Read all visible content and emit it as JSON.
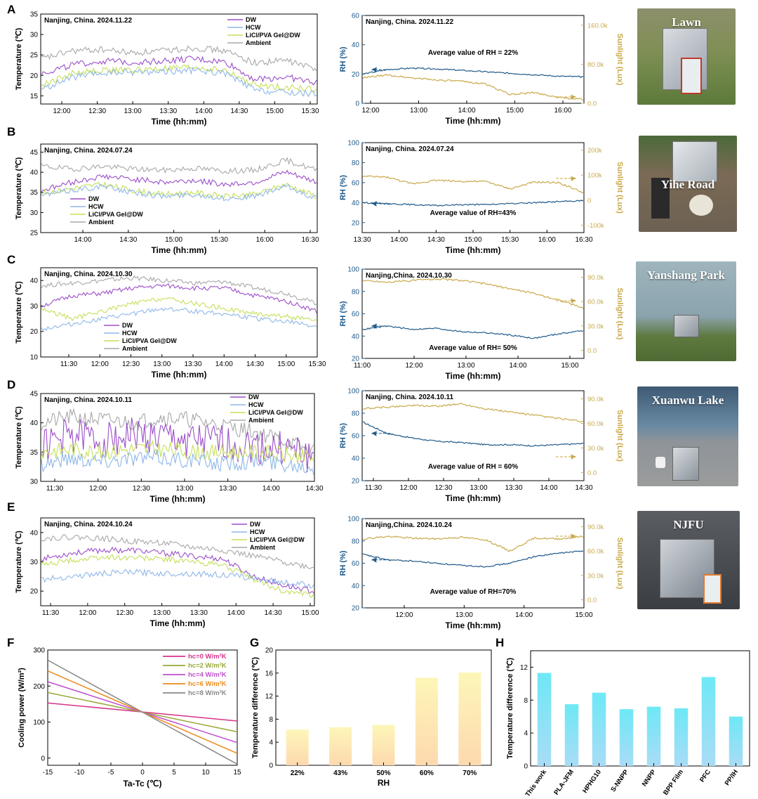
{
  "panel_labels": [
    "A",
    "B",
    "C",
    "D",
    "E",
    "F",
    "G",
    "H"
  ],
  "photos": [
    {
      "name": "lawn-photo",
      "label": "Lawn",
      "bg": "#6f8a4f"
    },
    {
      "name": "yihe-road-photo",
      "label": "Yihe Road",
      "bg": "#7a6a55"
    },
    {
      "name": "yanshang-park-photo",
      "label": "Yanshang Park",
      "bg": "#8aa0a8"
    },
    {
      "name": "xuanwu-lake-photo",
      "label": "Xuanwu Lake",
      "bg": "#5d7a8e"
    },
    {
      "name": "njfu-photo",
      "label": "NJFU",
      "bg": "#4a4e55"
    }
  ],
  "colors": {
    "DW": "#9b4fc9",
    "HCW": "#8fb7e8",
    "LiCl": "#c4e05a",
    "Ambient": "#a8a8a8",
    "RH": "#1f5a8a",
    "Sun": "#c9a94a"
  },
  "chart_data": [
    {
      "id": "A-temp",
      "type": "line",
      "title": "Nanjing, China.  2024.11.22",
      "xlabel": "Time (hh:mm)",
      "ylabel": "Temperature (℃)",
      "xticks": [
        "12:00",
        "12:30",
        "13:00",
        "13:30",
        "14:00",
        "14:30",
        "15:00",
        "15:30"
      ],
      "yticks": [
        15,
        20,
        25,
        30,
        35
      ],
      "ylim": [
        13,
        35
      ],
      "legend": [
        "DW",
        "HCW",
        "LiCl/PVA Gel@DW",
        "Ambient"
      ],
      "legend_position": "top-right",
      "series": [
        {
          "name": "DW",
          "values": [
            20.5,
            22.5,
            23.5,
            23.2,
            23.6,
            24.0,
            23.3,
            19.0,
            19.6,
            18.2
          ]
        },
        {
          "name": "HCW",
          "values": [
            16.5,
            19.5,
            20.5,
            20.8,
            21.0,
            21.2,
            20.5,
            16.3,
            15.8,
            15.5
          ]
        },
        {
          "name": "LiCl/PVA Gel@DW",
          "values": [
            17.5,
            20.5,
            21.2,
            21.3,
            21.6,
            22.0,
            21.2,
            17.5,
            17.2,
            16.5
          ]
        },
        {
          "name": "Ambient",
          "values": [
            24.0,
            26.0,
            26.3,
            25.5,
            26.0,
            26.8,
            26.0,
            23.0,
            23.7,
            21.5
          ]
        }
      ]
    },
    {
      "id": "A-rh",
      "type": "line",
      "title": "Nanjing, China.  2024.11.22",
      "annotation": "Average value of  RH = 22%",
      "xlabel": "Time (hh:mm)",
      "ylabel": "RH (%)",
      "y2label": "Sunlight (Lux)",
      "xticks": [
        "12:00",
        "13:00",
        "14:00",
        "15:00",
        "16:00"
      ],
      "yticks": [
        0,
        20,
        40,
        60
      ],
      "ylim": [
        0,
        60
      ],
      "y2ticks": [
        "0.0",
        "80.0k",
        "160.0k"
      ],
      "y2lim": [
        0,
        180000
      ],
      "series": [
        {
          "name": "RH",
          "values": [
            20,
            23,
            24,
            23.5,
            22.5,
            21.5,
            20.5,
            19.5,
            18.5,
            18
          ]
        },
        {
          "name": "Sunlight",
          "values": [
            52000,
            58000,
            52000,
            48000,
            45000,
            40000,
            18000,
            22000,
            12000,
            8000
          ]
        }
      ]
    },
    {
      "id": "B-temp",
      "type": "line",
      "title": "Nanjing, China.  2024.07.24",
      "xlabel": "Time (hh:mm)",
      "ylabel": "Temperature (℃)",
      "xticks": [
        "14:00",
        "14:30",
        "15:00",
        "15:30",
        "16:00",
        "16:30"
      ],
      "yticks": [
        25,
        30,
        35,
        40,
        45
      ],
      "ylim": [
        25,
        47
      ],
      "legend": [
        "DW",
        "HCW",
        "LiCl/PVA Gel@DW",
        "Ambient"
      ],
      "legend_position": "bottom-left",
      "series": [
        {
          "name": "DW",
          "values": [
            35.5,
            37.5,
            39.0,
            38.3,
            37.5,
            38.0,
            37.0,
            37.5,
            40.0,
            37.5
          ]
        },
        {
          "name": "HCW",
          "values": [
            34.3,
            35.5,
            36.5,
            35.0,
            34.0,
            34.5,
            33.5,
            34.0,
            36.5,
            33.5
          ]
        },
        {
          "name": "LiCl/PVA Gel@DW",
          "values": [
            34.8,
            36.0,
            37.0,
            35.5,
            34.5,
            35.0,
            34.0,
            34.5,
            37.0,
            34.0
          ]
        },
        {
          "name": "Ambient",
          "values": [
            41.5,
            40.8,
            41.5,
            40.8,
            40.5,
            41.0,
            40.3,
            40.5,
            43.0,
            40.5
          ]
        }
      ]
    },
    {
      "id": "B-rh",
      "type": "line",
      "title": "Nanjing, China.  2024.07.24",
      "annotation": "Average value of RH=43%",
      "xlabel": "Time (hh:mm)",
      "ylabel": "RH (%)",
      "y2label": "Sunlight (Lux)",
      "xticks": [
        "13:30",
        "14:00",
        "14:30",
        "15:00",
        "15:30",
        "16:00",
        "16:30"
      ],
      "yticks": [
        20,
        40,
        60,
        80,
        100
      ],
      "ylim": [
        10,
        100
      ],
      "y2ticks": [
        "-100k",
        "0",
        "100k",
        "200k"
      ],
      "y2lim": [
        -130000,
        230000
      ],
      "series": [
        {
          "name": "RH",
          "values": [
            40,
            39,
            38,
            37,
            38,
            38,
            39,
            40,
            41,
            42
          ]
        },
        {
          "name": "Sunlight",
          "values": [
            95000,
            92000,
            65000,
            80000,
            75000,
            75000,
            45000,
            72000,
            70000,
            30000
          ]
        }
      ]
    },
    {
      "id": "C-temp",
      "type": "line",
      "title": "Nanjing, China.  2024.10.30",
      "xlabel": "Time (hh:mm)",
      "ylabel": "Temperature (℃)",
      "xticks": [
        "11:30",
        "12:00",
        "12:30",
        "13:00",
        "13:30",
        "14:00",
        "14:30",
        "15:00",
        "15:30"
      ],
      "yticks": [
        10,
        20,
        30,
        40
      ],
      "ylim": [
        10,
        45
      ],
      "legend": [
        "DW",
        "HCW",
        "LiCl/PVA Gel@DW",
        "Ambient"
      ],
      "legend_position": "bottom-left",
      "series": [
        {
          "name": "DW",
          "values": [
            30,
            34,
            35,
            37,
            38,
            37,
            37,
            34,
            32,
            28
          ]
        },
        {
          "name": "HCW",
          "values": [
            21,
            23,
            25,
            27,
            29,
            28,
            27,
            25,
            24,
            22
          ]
        },
        {
          "name": "LiCl/PVA Gel@DW",
          "values": [
            29,
            25,
            28,
            31,
            33,
            31,
            29,
            27,
            26,
            24
          ]
        },
        {
          "name": "Ambient",
          "values": [
            38,
            39,
            40,
            41,
            40,
            39,
            39.5,
            37,
            35,
            31
          ]
        }
      ]
    },
    {
      "id": "C-rh",
      "type": "line",
      "title": "Nanjing,China.  2024.10.30",
      "annotation": "Average value of  RH= 50%",
      "xlabel": "Time (hh:mm)",
      "ylabel": "RH (%)",
      "y2label": "Sunlight (Lux)",
      "xticks": [
        "11:00",
        "12:00",
        "13:00",
        "14:00",
        "15:00"
      ],
      "yticks": [
        20,
        40,
        60,
        80,
        100
      ],
      "ylim": [
        20,
        100
      ],
      "y2ticks": [
        "0.0",
        "30.0k",
        "60.0k",
        "90.0k"
      ],
      "y2lim": [
        -10000,
        100000
      ],
      "series": [
        {
          "name": "RH",
          "values": [
            46,
            49,
            46,
            47,
            44,
            43,
            41,
            38,
            42,
            45
          ]
        },
        {
          "name": "Sunlight",
          "values": [
            86000,
            84000,
            86000,
            88000,
            86000,
            82000,
            76000,
            70000,
            62000,
            52000
          ]
        }
      ]
    },
    {
      "id": "D-temp",
      "type": "line",
      "title": "Nanjing, China.  2024.10.11",
      "xlabel": "Time (hh:mm)",
      "ylabel": "Temperature (℃)",
      "xticks": [
        "11:30",
        "12:00",
        "12:30",
        "13:00",
        "13:30",
        "14:00",
        "14:30"
      ],
      "yticks": [
        30,
        35,
        40,
        45
      ],
      "ylim": [
        30,
        45
      ],
      "legend": [
        "DW",
        "HCW",
        "LiCl/PVA Gel@DW",
        "Ambient"
      ],
      "legend_position": "top-right",
      "series": [
        {
          "name": "DW",
          "values": [
            36,
            38,
            37,
            38,
            37.5,
            37,
            36.5,
            36,
            35.5,
            34
          ]
        },
        {
          "name": "HCW",
          "values": [
            33,
            34,
            33.5,
            34,
            34,
            33.5,
            33,
            33.5,
            33,
            32.5
          ]
        },
        {
          "name": "LiCl/PVA Gel@DW",
          "values": [
            35,
            35.5,
            35,
            35.5,
            35.5,
            35,
            35,
            35,
            34.5,
            34
          ]
        },
        {
          "name": "Ambient",
          "values": [
            40,
            41,
            40.5,
            40,
            41,
            40.5,
            39.5,
            38.5,
            37,
            35
          ]
        }
      ]
    },
    {
      "id": "D-rh",
      "type": "line",
      "title": "Nanjing, China.  2024.10.11",
      "annotation": "Average value of  RH = 60%",
      "xlabel": "Time (hh:mm)",
      "ylabel": "RH (%)",
      "y2label": "Sunlight (Lux)",
      "xticks": [
        "11:30",
        "12:00",
        "12:30",
        "13:00",
        "13:30",
        "14:00",
        "14:30"
      ],
      "yticks": [
        20,
        40,
        60,
        80,
        100
      ],
      "ylim": [
        20,
        100
      ],
      "y2ticks": [
        "0.0",
        "30.0k",
        "60.0k",
        "90.0k"
      ],
      "y2lim": [
        -10000,
        100000
      ],
      "series": [
        {
          "name": "RH",
          "values": [
            72,
            62,
            58,
            55,
            54,
            52,
            52,
            51,
            52,
            53
          ]
        },
        {
          "name": "Sunlight",
          "values": [
            78000,
            80000,
            82000,
            81000,
            84000,
            78000,
            74000,
            70000,
            66000,
            62000
          ]
        }
      ]
    },
    {
      "id": "E-temp",
      "type": "line",
      "title": "Nanjing, China.  2024.10.24",
      "xlabel": "Time (hh:mm)",
      "ylabel": "Temperature (℃)",
      "xticks": [
        "11:30",
        "12:00",
        "12:30",
        "13:00",
        "13:30",
        "14:00",
        "14:30",
        "15:00"
      ],
      "yticks": [
        20,
        30,
        40
      ],
      "ylim": [
        15,
        45
      ],
      "legend": [
        "DW",
        "HCW",
        "LiCl/PVA Gel@DW",
        "Ambient"
      ],
      "legend_position": "top-right",
      "series": [
        {
          "name": "DW",
          "values": [
            31,
            33,
            34,
            34,
            33,
            32,
            31,
            25,
            22,
            20
          ]
        },
        {
          "name": "HCW",
          "values": [
            24,
            25,
            26,
            26.5,
            26,
            26,
            25.5,
            24.5,
            23,
            22
          ]
        },
        {
          "name": "LiCl/PVA Gel@DW",
          "values": [
            29,
            30.5,
            31.5,
            31.5,
            31,
            30,
            29,
            24,
            20,
            18.5
          ]
        },
        {
          "name": "Ambient",
          "values": [
            38,
            38.5,
            38,
            37,
            36.5,
            35,
            34,
            32,
            30,
            28
          ]
        }
      ]
    },
    {
      "id": "E-rh",
      "type": "line",
      "title": "Nanjing,China.  2024.10.24",
      "annotation": "Average value of RH=70%",
      "xlabel": "Time (hh:mm)",
      "ylabel": "RH (%)",
      "y2label": "Sunlight (Lux)",
      "xticks": [
        "12:00",
        "13:00",
        "14:00",
        "15:00"
      ],
      "yticks": [
        20,
        40,
        60,
        80,
        100
      ],
      "ylim": [
        20,
        100
      ],
      "y2ticks": [
        "0.0",
        "30.0k",
        "60.0k",
        "90.0k"
      ],
      "y2lim": [
        -10000,
        100000
      ],
      "series": [
        {
          "name": "RH",
          "values": [
            68,
            63,
            62,
            60,
            58,
            57,
            60,
            66,
            69,
            71
          ]
        },
        {
          "name": "Sunlight",
          "values": [
            75000,
            78000,
            76000,
            75000,
            77000,
            74000,
            60000,
            76000,
            75000,
            78000
          ]
        }
      ]
    },
    {
      "id": "F",
      "type": "line",
      "xlabel": "Ta-Tc (℃)",
      "ylabel": "Cooling power (W/m²)",
      "xticks": [
        -15,
        -10,
        -5,
        0,
        5,
        10,
        15
      ],
      "xlim": [
        -15,
        15
      ],
      "yticks": [
        0,
        100,
        200,
        300
      ],
      "ylim": [
        -20,
        300
      ],
      "legend_position": "top-right",
      "series": [
        {
          "name": "hc=0 W/m²K",
          "x": [
            -15,
            15
          ],
          "values": [
            153,
            103
          ]
        },
        {
          "name": "hc=2 W/m²K",
          "x": [
            -15,
            15
          ],
          "values": [
            182,
            73
          ]
        },
        {
          "name": "hc=4 W/m²K",
          "x": [
            -15,
            15
          ],
          "values": [
            212,
            43
          ]
        },
        {
          "name": "hc=6 W/m²K",
          "x": [
            -15,
            15
          ],
          "values": [
            242,
            13
          ]
        },
        {
          "name": "hc=8 W/m²K",
          "x": [
            -15,
            15
          ],
          "values": [
            272,
            -17
          ]
        }
      ]
    },
    {
      "id": "G",
      "type": "bar",
      "xlabel": "RH",
      "ylabel": "Temperature difference (℃)",
      "categories": [
        "22%",
        "43%",
        "50%",
        "60%",
        "70%"
      ],
      "values": [
        6.2,
        6.6,
        7.0,
        15.2,
        16.1
      ],
      "yticks": [
        0,
        4,
        8,
        12,
        16,
        20
      ],
      "ylim": [
        0,
        20
      ]
    },
    {
      "id": "H",
      "type": "bar",
      "xlabel": "",
      "ylabel": "Temperature difference (℃)",
      "categories": [
        "This work",
        "PLA-JFM",
        "HPHG10",
        "S-NNPP",
        "NNPP",
        "BPP Film",
        "PFC",
        "PP/IH"
      ],
      "values": [
        11.3,
        7.5,
        8.9,
        6.9,
        7.2,
        7.0,
        10.8,
        6.0
      ],
      "yticks": [
        0,
        4,
        8,
        12
      ],
      "ylim": [
        0,
        14
      ]
    }
  ]
}
